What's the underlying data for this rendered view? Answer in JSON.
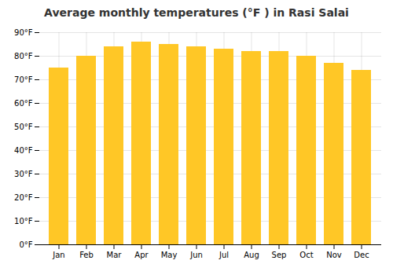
{
  "chart_data": {
    "type": "bar",
    "title": "Average monthly temperatures (°F ) in Rasi Salai",
    "categories": [
      "Jan",
      "Feb",
      "Mar",
      "Apr",
      "May",
      "Jun",
      "Jul",
      "Aug",
      "Sep",
      "Oct",
      "Nov",
      "Dec"
    ],
    "values": [
      75,
      80,
      84,
      86,
      85,
      84,
      83,
      82,
      82,
      80,
      77,
      74
    ],
    "color": "#FFC726",
    "ylim": [
      0,
      90
    ],
    "yticks": [
      {
        "value": 0,
        "label": "0°F"
      },
      {
        "value": 10,
        "label": "10°F"
      },
      {
        "value": 20,
        "label": "20°F"
      },
      {
        "value": 30,
        "label": "30°F"
      },
      {
        "value": 40,
        "label": "40°F"
      },
      {
        "value": 50,
        "label": "50°F"
      },
      {
        "value": 60,
        "label": "60°F"
      },
      {
        "value": 70,
        "label": "70°F"
      },
      {
        "value": 80,
        "label": "80°F"
      },
      {
        "value": 90,
        "label": "90°F"
      }
    ],
    "grid": true
  }
}
